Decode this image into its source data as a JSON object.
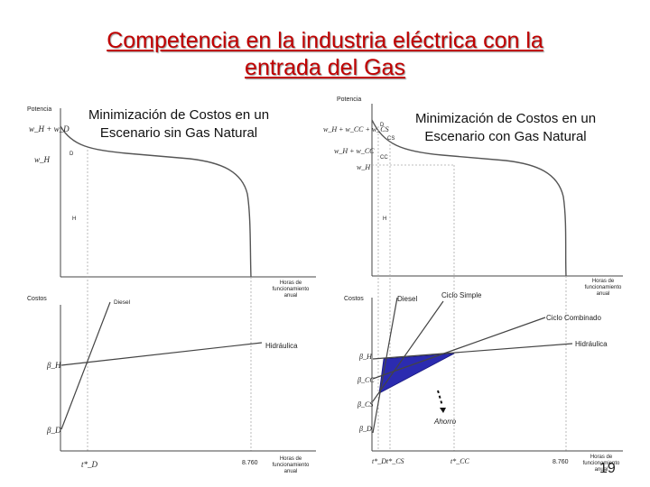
{
  "title_line1": "Competencia en la industria eléctrica con la",
  "title_line2": "entrada del Gas",
  "left": {
    "subtitle_line1": "Minimización de Costos en un",
    "subtitle_line2": "Escenario sin Gas Natural",
    "top": {
      "y_axis_label": "Potencia",
      "y_tick_top": "w_H + w_D",
      "y_tick_mid": "w_H",
      "region_D": "D",
      "region_H": "H",
      "x_axis_label": [
        "Horas de",
        "funcionamiento",
        "anual"
      ]
    },
    "bottom": {
      "y_axis_label": "Costos",
      "line_diesel": "Diesel",
      "line_hidraulica": "Hidráulica",
      "beta_H": "β_H",
      "beta_D": "β_D",
      "x_tick_tD": "t*_D",
      "x_tick_8760": "8.760",
      "x_axis_label": [
        "Horas de",
        "funcionamiento",
        "anual"
      ]
    }
  },
  "right": {
    "subtitle_line1": "Minimización de Costos en un",
    "subtitle_line2": "Escenario con Gas Natural",
    "top": {
      "y_axis_label": "Potencia",
      "y_tick_1": "w_H + w_CC + w_CS",
      "y_tick_2": "w_H + w_CC",
      "y_tick_3": "w_H",
      "region_D": "D",
      "region_CS": "CS",
      "region_CC": "CC",
      "region_H": "H",
      "x_axis_label": [
        "Horas de",
        "funcionamiento",
        "anual"
      ]
    },
    "bottom": {
      "y_axis_label": "Costos",
      "line_diesel": "Diesel",
      "line_ciclo_simple": "Ciclo Simple",
      "line_ciclo_combinado": "Ciclo Combinado",
      "line_hidraulica": "Hidráulica",
      "beta_H": "β_H",
      "beta_CC": "β_CC",
      "beta_CS": "β_CS",
      "beta_D": "β_D",
      "savings_label": "Ahorro",
      "x_tick_tD": "t*_D",
      "x_tick_tCS": "t*_CS",
      "x_tick_tCC": "t*_CC",
      "x_tick_8760": "8.760",
      "x_axis_label": [
        "Horas de",
        "funcionamiento",
        "anual"
      ]
    }
  },
  "page_number": "19",
  "colors": {
    "title": "#c00000",
    "savings_fill": "#2b2bb0"
  }
}
